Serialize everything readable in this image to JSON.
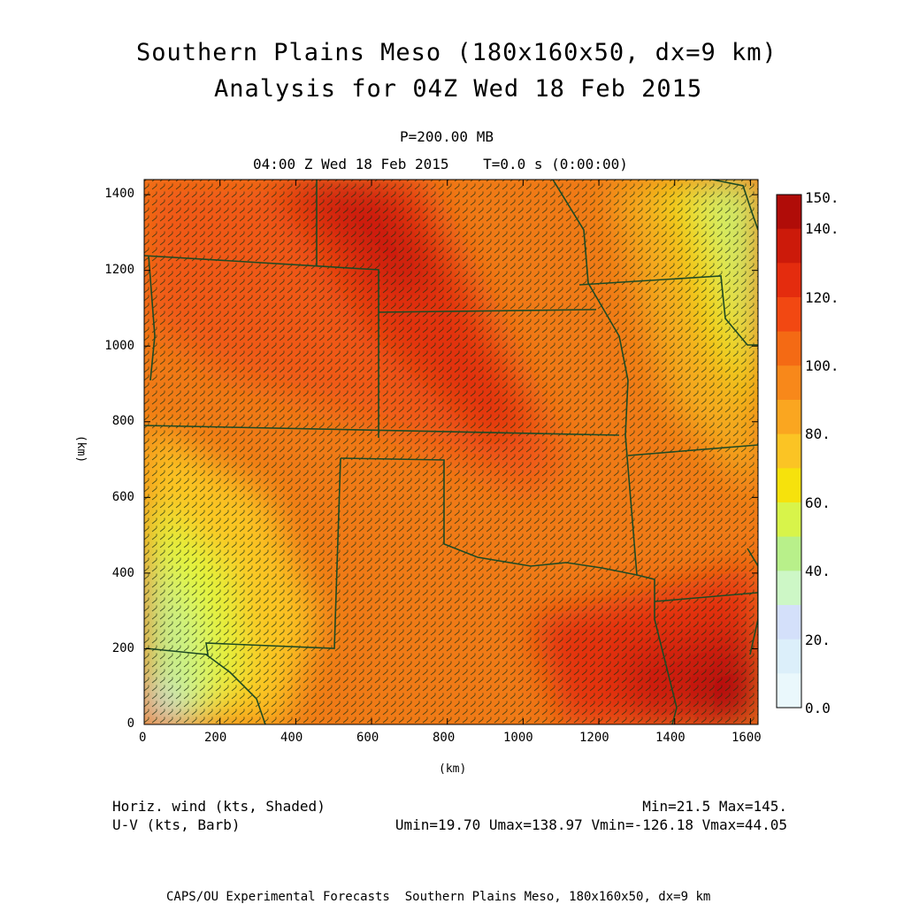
{
  "header": {
    "title_line1": "Southern Plains Meso (180x160x50, dx=9 km)",
    "title_line2": "Analysis for 04Z Wed 18 Feb 2015",
    "level": "P=200.00 MB",
    "valid_time": "04:00 Z Wed 18 Feb 2015    T=0.0 s (0:00:00)"
  },
  "axes": {
    "x_label": "(km)",
    "y_label": "(km)",
    "x_ticks": [
      "0",
      "200",
      "400",
      "600",
      "800",
      "1000",
      "1200",
      "1400",
      "1600"
    ],
    "y_ticks": [
      "0",
      "200",
      "400",
      "600",
      "800",
      "1000",
      "1200",
      "1400"
    ],
    "x_range": [
      0,
      1620
    ],
    "y_range": [
      0,
      1440
    ]
  },
  "colorbar": {
    "labels": [
      "150.",
      "140.",
      "120.",
      "100.",
      "80.",
      "60.",
      "40.",
      "20.",
      "0.0"
    ],
    "label_values": [
      150,
      140,
      120,
      100,
      80,
      60,
      40,
      20,
      0
    ],
    "colors": [
      "#b00c08",
      "#cc1a0a",
      "#e42c0e",
      "#f24812",
      "#f46a14",
      "#f8881a",
      "#faa620",
      "#fbc424",
      "#f6e20c",
      "#d8f44a",
      "#b8f08a",
      "#cdf7c6",
      "#d4e0fa",
      "#dceffa",
      "#eaf8fc"
    ]
  },
  "notes": {
    "field1": "Horiz. wind (kts, Shaded)",
    "field2": "U-V (kts, Barb)",
    "minmax": "Min=21.5 Max=145.",
    "uvstats": "Umin=19.70 Umax=138.97 Vmin=-126.18 Vmax=44.05"
  },
  "footer": "CAPS/OU Experimental Forecasts  Southern Plains Meso, 180x160x50, dx=9 km"
}
